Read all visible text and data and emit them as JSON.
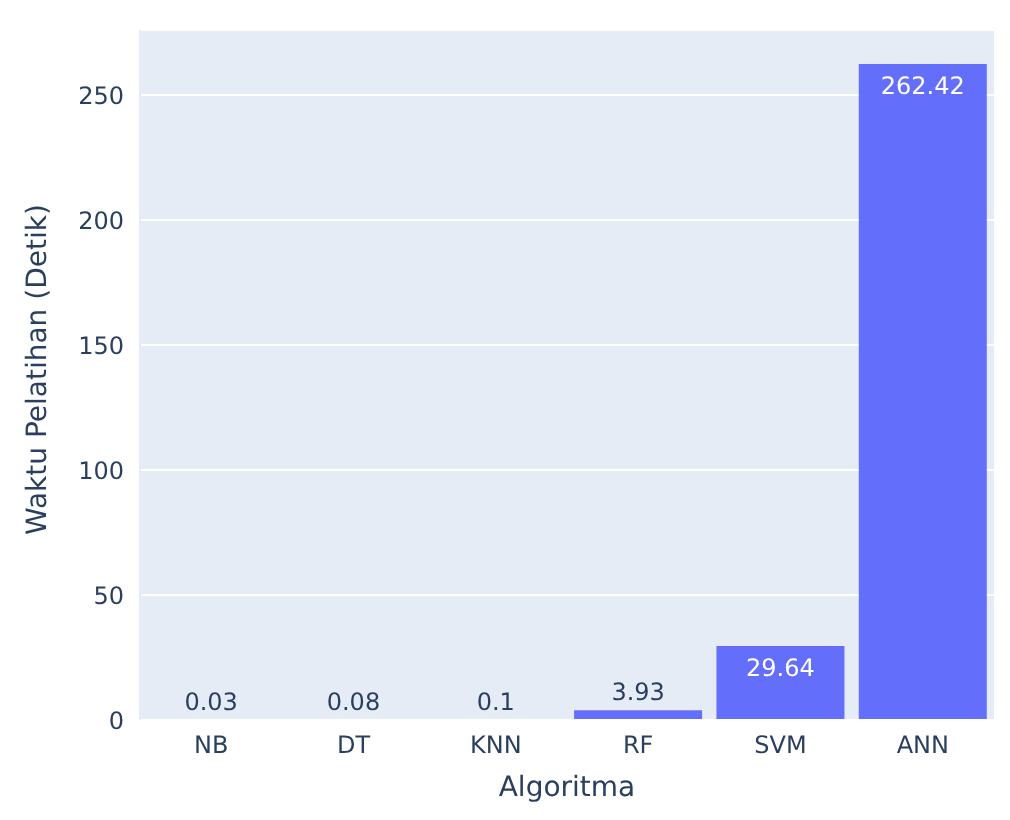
{
  "chart_data": {
    "type": "bar",
    "xlabel": "Algoritma",
    "ylabel": "Waktu Pelatihan (Detik)",
    "categories": [
      "NB",
      "DT",
      "KNN",
      "RF",
      "SVM",
      "ANN"
    ],
    "values": [
      0.03,
      0.08,
      0.1,
      3.93,
      29.64,
      262.42
    ],
    "color": "#636efa",
    "ylim": [
      0,
      276
    ],
    "yticks": [
      0,
      50,
      100,
      150,
      200,
      250
    ],
    "grid": "y",
    "data_labels": true
  }
}
